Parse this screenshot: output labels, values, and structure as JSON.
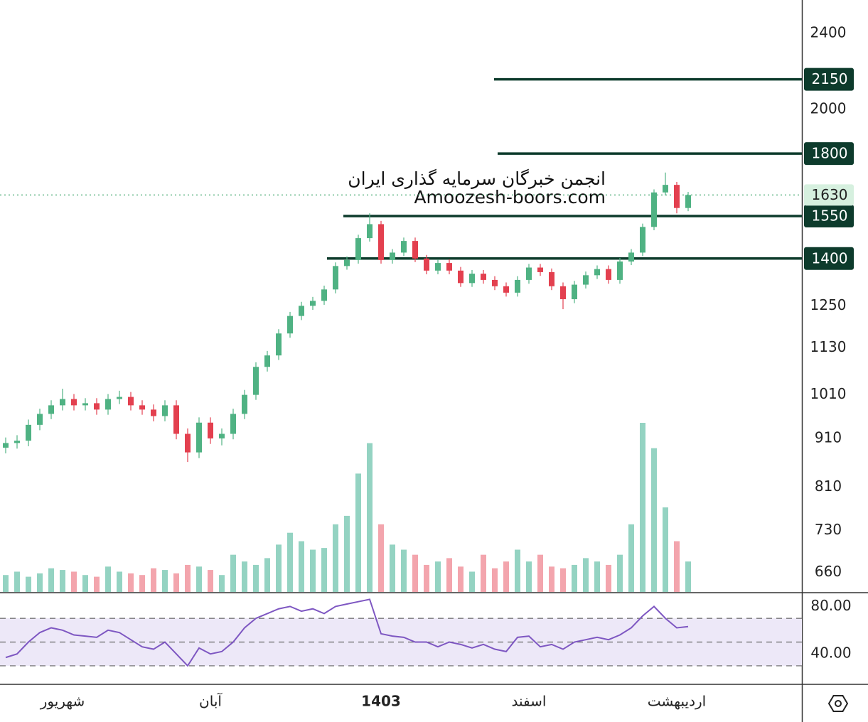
{
  "chart_data": {
    "type": "candlestick",
    "log_scale": true,
    "x": [
      null,
      null,
      null,
      null,
      null,
      "شهریور",
      null,
      null,
      null,
      null,
      null,
      null,
      null,
      null,
      null,
      null,
      null,
      null,
      "آبان",
      null,
      null,
      null,
      null,
      null,
      null,
      null,
      null,
      null,
      null,
      null,
      null,
      null,
      null,
      "1403",
      null,
      null,
      null,
      null,
      null,
      null,
      null,
      null,
      null,
      null,
      null,
      null,
      "اسفند",
      null,
      null,
      null,
      null,
      null,
      null,
      null,
      null,
      null,
      null,
      null,
      null,
      "اردیبهشت",
      null
    ],
    "open": [
      890,
      900,
      905,
      940,
      965,
      985,
      1000,
      985,
      990,
      975,
      1000,
      1005,
      985,
      975,
      960,
      985,
      920,
      880,
      945,
      910,
      920,
      965,
      1010,
      1080,
      1110,
      1170,
      1220,
      1250,
      1265,
      1300,
      1375,
      1395,
      1470,
      1520,
      1395,
      1420,
      1460,
      1400,
      1360,
      1385,
      1360,
      1320,
      1350,
      1330,
      1310,
      1290,
      1330,
      1370,
      1355,
      1310,
      1270,
      1315,
      1345,
      1365,
      1330,
      1390,
      1420,
      1510,
      1640,
      1670,
      1580
    ],
    "high": [
      912,
      917,
      952,
      977,
      997,
      1025,
      1012,
      1002,
      1002,
      1012,
      1020,
      1017,
      997,
      987,
      997,
      997,
      932,
      957,
      957,
      932,
      977,
      1022,
      1092,
      1122,
      1182,
      1232,
      1262,
      1277,
      1312,
      1387,
      1407,
      1482,
      1560,
      1532,
      1432,
      1472,
      1472,
      1412,
      1397,
      1397,
      1372,
      1362,
      1362,
      1342,
      1322,
      1342,
      1382,
      1382,
      1367,
      1322,
      1327,
      1357,
      1377,
      1377,
      1402,
      1432,
      1522,
      1652,
      1720,
      1682,
      1642
    ],
    "low": [
      878,
      888,
      893,
      928,
      953,
      973,
      973,
      973,
      963,
      963,
      988,
      973,
      963,
      948,
      948,
      908,
      860,
      868,
      898,
      895,
      908,
      953,
      998,
      1068,
      1098,
      1158,
      1208,
      1238,
      1253,
      1288,
      1363,
      1383,
      1458,
      1383,
      1383,
      1408,
      1388,
      1348,
      1348,
      1348,
      1308,
      1308,
      1318,
      1298,
      1278,
      1278,
      1318,
      1343,
      1298,
      1240,
      1258,
      1303,
      1333,
      1318,
      1318,
      1378,
      1408,
      1498,
      1628,
      1560,
      1568
    ],
    "close": [
      900,
      905,
      940,
      965,
      985,
      1000,
      985,
      990,
      975,
      1000,
      1005,
      985,
      975,
      960,
      985,
      920,
      880,
      945,
      910,
      920,
      965,
      1010,
      1080,
      1110,
      1170,
      1220,
      1250,
      1265,
      1300,
      1375,
      1395,
      1470,
      1520,
      1395,
      1420,
      1460,
      1400,
      1360,
      1385,
      1360,
      1320,
      1350,
      1330,
      1310,
      1290,
      1330,
      1370,
      1355,
      1310,
      1270,
      1315,
      1345,
      1365,
      1330,
      1390,
      1420,
      1510,
      1640,
      1670,
      1580,
      1630
    ],
    "up_color": "#4fb283",
    "down_color": "#e3404f",
    "ylim": [
      630,
      2600
    ],
    "yticks": [
      660,
      730,
      810,
      910,
      1010,
      1130,
      1250,
      2000,
      2400
    ],
    "levels": [
      2150,
      1800,
      1550,
      1400
    ],
    "level_color": "#0d3b2c",
    "last_price": 1630,
    "last_price_color": "#3fa66b",
    "watermark": [
      "انجمن خبرگان سرمایه گذاری ایران",
      "Amoozesh-boors.com"
    ],
    "volume": {
      "values": [
        10,
        12,
        9,
        11,
        14,
        13,
        12,
        10,
        9,
        15,
        12,
        11,
        10,
        14,
        13,
        11,
        16,
        15,
        13,
        10,
        22,
        18,
        16,
        20,
        28,
        35,
        30,
        25,
        26,
        40,
        45,
        70,
        88,
        40,
        28,
        25,
        22,
        16,
        18,
        20,
        15,
        12,
        22,
        14,
        18,
        25,
        18,
        22,
        15,
        14,
        16,
        20,
        18,
        16,
        22,
        40,
        100,
        85,
        50,
        30,
        18
      ],
      "ylim": [
        0,
        100
      ],
      "up_color": "#94d3c2",
      "down_color": "#f3a5ad"
    },
    "rsi": {
      "values": [
        37,
        40,
        50,
        58,
        62,
        60,
        56,
        55,
        54,
        60,
        58,
        52,
        46,
        44,
        50,
        40,
        30,
        45,
        40,
        42,
        50,
        62,
        70,
        74,
        78,
        80,
        76,
        78,
        74,
        80,
        82,
        84,
        86,
        57,
        55,
        54,
        50,
        50,
        46,
        50,
        48,
        45,
        48,
        44,
        42,
        54,
        55,
        46,
        48,
        44,
        50,
        52,
        54,
        52,
        56,
        62,
        72,
        80,
        70,
        62,
        63
      ],
      "ylim": [
        15,
        91
      ],
      "yticks": [
        {
          "value": 80,
          "label": "80.00"
        },
        {
          "value": 40,
          "label": "40.00"
        }
      ],
      "bands": [
        30,
        50,
        70
      ],
      "color": "#7e57c2"
    }
  }
}
